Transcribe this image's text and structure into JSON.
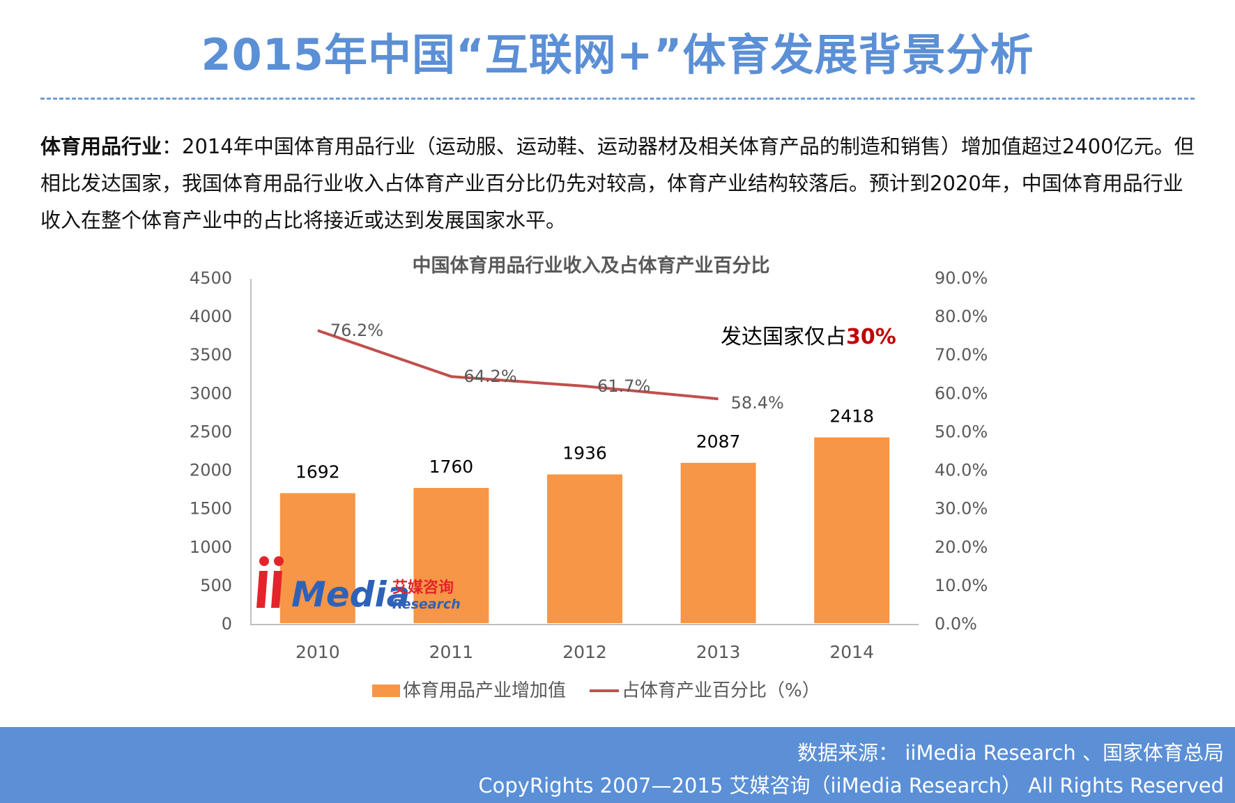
{
  "page": {
    "title": "2015年中国“互联网+”体育发展背景分析",
    "intro_lead": "体育用品行业",
    "intro_text": "：2014年中国体育用品行业（运动服、运动鞋、运动器材及相关体育产品的制造和销售）增加值超过2400亿元。但相比发达国家，我国体育用品行业收入占体育产业百分比仍先对较高，体育产业结构较落后。预计到2020年，中国体育用品行业收入在整个体育产业中的占比将接近或达到发展国家水平。"
  },
  "chart_data": {
    "type": "bar",
    "title": "中国体育用品行业收入及占体育产业百分比",
    "categories": [
      "2010",
      "2011",
      "2012",
      "2013",
      "2014"
    ],
    "series": [
      {
        "name": "体育用品产业增加值",
        "type": "bar",
        "axis": "left",
        "values": [
          1692,
          1760,
          1936,
          2087,
          2418
        ],
        "labels": [
          "1692",
          "1760",
          "1936",
          "2087",
          "2418"
        ],
        "color": "#f79646"
      },
      {
        "name": "占体育产业百分比（%）",
        "type": "line",
        "axis": "right",
        "values": [
          76.2,
          64.2,
          61.7,
          58.4,
          null
        ],
        "labels": [
          "76.2%",
          "64.2%",
          "61.7%",
          "58.4%",
          ""
        ],
        "color": "#c0504d"
      }
    ],
    "ylim_left": [
      0,
      4500
    ],
    "yticks_left": [
      "0",
      "500",
      "1000",
      "1500",
      "2000",
      "2500",
      "3000",
      "3500",
      "4000",
      "4500"
    ],
    "ylim_right": [
      0,
      90
    ],
    "yticks_right": [
      "0.0%",
      "10.0%",
      "20.0%",
      "30.0%",
      "40.0%",
      "50.0%",
      "60.0%",
      "70.0%",
      "80.0%",
      "90.0%"
    ],
    "annotation": {
      "text": "发达国家仅占",
      "highlight": "30%",
      "highlight_color": "#c00000"
    },
    "legend_position": "bottom",
    "grid": false
  },
  "watermark": {
    "brand": "iiMedia",
    "cn": "艾媒咨询",
    "en": "Research"
  },
  "footer": {
    "source": "数据来源： iiMedia Research 、国家体育总局",
    "copyright": "CopyRights 2007—2015 艾媒咨询（iiMedia Research） All Rights Reserved"
  }
}
